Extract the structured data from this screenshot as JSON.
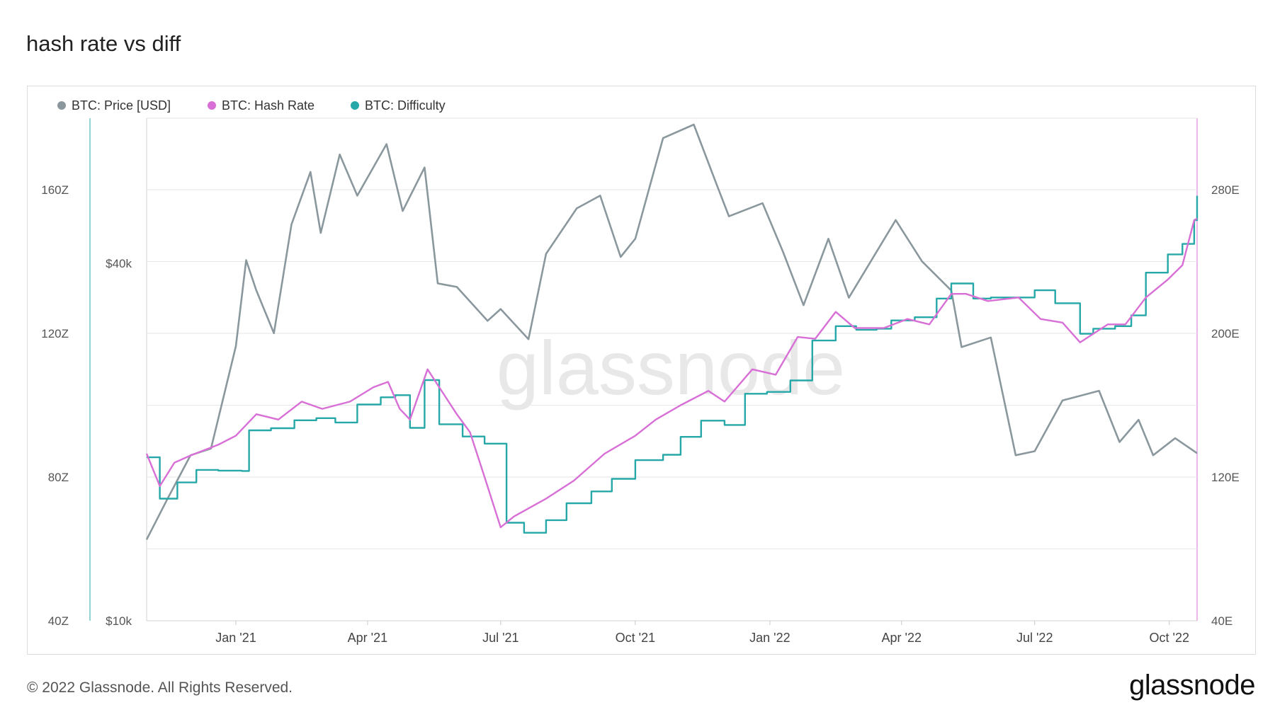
{
  "page": {
    "title": "hash rate vs diff",
    "copyright": "© 2022 Glassnode. All Rights Reserved.",
    "brand": "glassnode",
    "watermark": "glassnode"
  },
  "colors": {
    "price": "#8a989e",
    "hash_rate": "#d86fd6",
    "difficulty": "#26a7a8",
    "grid": "#e6e6e6"
  },
  "chart_data": {
    "type": "line",
    "title": "hash rate vs diff",
    "legend_position": "top-left",
    "grid": true,
    "x_range": [
      "2020-11-01",
      "2022-10-20"
    ],
    "x_ticks": [
      {
        "label": "Jan '21",
        "date": "2021-01-01"
      },
      {
        "label": "Apr '21",
        "date": "2021-04-01"
      },
      {
        "label": "Jul '21",
        "date": "2021-07-01"
      },
      {
        "label": "Oct '21",
        "date": "2021-10-01"
      },
      {
        "label": "Jan '22",
        "date": "2022-01-01"
      },
      {
        "label": "Apr '22",
        "date": "2022-04-01"
      },
      {
        "label": "Jul '22",
        "date": "2022-07-01"
      },
      {
        "label": "Oct '22",
        "date": "2022-10-01"
      }
    ],
    "y_axes": {
      "difficulty": {
        "range": [
          40,
          160
        ],
        "unit": "Z",
        "ticks": [
          {
            "value": 40,
            "label": "40Z"
          },
          {
            "value": 80,
            "label": "80Z"
          },
          {
            "value": 120,
            "label": "120Z"
          },
          {
            "value": 160,
            "label": "160Z"
          }
        ]
      },
      "price": {
        "scale": "log",
        "ticks": [
          {
            "value": 10000,
            "label": "$10k"
          },
          {
            "value": 40000,
            "label": "$40k"
          }
        ]
      },
      "hash_rate": {
        "range": [
          40,
          280
        ],
        "unit": "E",
        "ticks": [
          {
            "value": 40,
            "label": "40E"
          },
          {
            "value": 120,
            "label": "120E"
          },
          {
            "value": 200,
            "label": "200E"
          },
          {
            "value": 280,
            "label": "280E"
          }
        ]
      }
    },
    "series": [
      {
        "name": "BTC: Price [USD]",
        "axis": "price",
        "points": [
          [
            "2020-11-01",
            13700
          ],
          [
            "2020-11-15",
            16000
          ],
          [
            "2020-12-01",
            19000
          ],
          [
            "2020-12-15",
            19500
          ],
          [
            "2021-01-01",
            29000
          ],
          [
            "2021-01-08",
            40500
          ],
          [
            "2021-01-15",
            36000
          ],
          [
            "2021-01-27",
            30500
          ],
          [
            "2021-02-08",
            46500
          ],
          [
            "2021-02-21",
            57000
          ],
          [
            "2021-02-28",
            45000
          ],
          [
            "2021-03-13",
            61000
          ],
          [
            "2021-03-25",
            52000
          ],
          [
            "2021-04-14",
            63500
          ],
          [
            "2021-04-25",
            49000
          ],
          [
            "2021-05-10",
            58000
          ],
          [
            "2021-05-19",
            37000
          ],
          [
            "2021-06-01",
            36500
          ],
          [
            "2021-06-22",
            32000
          ],
          [
            "2021-07-01",
            33500
          ],
          [
            "2021-07-20",
            29800
          ],
          [
            "2021-08-01",
            41500
          ],
          [
            "2021-08-22",
            49500
          ],
          [
            "2021-09-07",
            52000
          ],
          [
            "2021-09-21",
            41000
          ],
          [
            "2021-10-01",
            44000
          ],
          [
            "2021-10-20",
            65000
          ],
          [
            "2021-11-10",
            68500
          ],
          [
            "2021-11-26",
            54000
          ],
          [
            "2021-12-04",
            48000
          ],
          [
            "2021-12-27",
            50500
          ],
          [
            "2022-01-10",
            41800
          ],
          [
            "2022-01-24",
            34000
          ],
          [
            "2022-02-10",
            44000
          ],
          [
            "2022-02-24",
            35000
          ],
          [
            "2022-03-28",
            47300
          ],
          [
            "2022-04-15",
            40300
          ],
          [
            "2022-05-05",
            36000
          ],
          [
            "2022-05-12",
            28900
          ],
          [
            "2022-06-01",
            30000
          ],
          [
            "2022-06-18",
            19000
          ],
          [
            "2022-07-01",
            19300
          ],
          [
            "2022-07-20",
            23500
          ],
          [
            "2022-08-14",
            24400
          ],
          [
            "2022-08-28",
            20000
          ],
          [
            "2022-09-10",
            21800
          ],
          [
            "2022-09-20",
            19000
          ],
          [
            "2022-10-05",
            20300
          ],
          [
            "2022-10-20",
            19150
          ]
        ]
      },
      {
        "name": "BTC: Hash Rate",
        "axis": "hash_rate",
        "points": [
          [
            "2020-11-01",
            133
          ],
          [
            "2020-11-10",
            115
          ],
          [
            "2020-11-20",
            128
          ],
          [
            "2020-12-01",
            132
          ],
          [
            "2020-12-20",
            138
          ],
          [
            "2021-01-01",
            143
          ],
          [
            "2021-01-15",
            155
          ],
          [
            "2021-01-30",
            152
          ],
          [
            "2021-02-15",
            162
          ],
          [
            "2021-03-01",
            158
          ],
          [
            "2021-03-20",
            162
          ],
          [
            "2021-04-05",
            170
          ],
          [
            "2021-04-15",
            173
          ],
          [
            "2021-04-23",
            158
          ],
          [
            "2021-04-30",
            152
          ],
          [
            "2021-05-12",
            180
          ],
          [
            "2021-05-20",
            170
          ],
          [
            "2021-06-01",
            155
          ],
          [
            "2021-06-10",
            145
          ],
          [
            "2021-06-20",
            120
          ],
          [
            "2021-07-01",
            92
          ],
          [
            "2021-07-10",
            98
          ],
          [
            "2021-08-01",
            108
          ],
          [
            "2021-08-20",
            118
          ],
          [
            "2021-09-10",
            133
          ],
          [
            "2021-10-01",
            143
          ],
          [
            "2021-10-15",
            152
          ],
          [
            "2021-11-01",
            160
          ],
          [
            "2021-11-20",
            168
          ],
          [
            "2021-12-01",
            162
          ],
          [
            "2021-12-20",
            180
          ],
          [
            "2022-01-05",
            177
          ],
          [
            "2022-01-20",
            198
          ],
          [
            "2022-02-01",
            197
          ],
          [
            "2022-02-15",
            212
          ],
          [
            "2022-02-28",
            203
          ],
          [
            "2022-03-20",
            203
          ],
          [
            "2022-04-05",
            208
          ],
          [
            "2022-04-20",
            205
          ],
          [
            "2022-05-05",
            222
          ],
          [
            "2022-05-15",
            222
          ],
          [
            "2022-05-30",
            218
          ],
          [
            "2022-06-20",
            220
          ],
          [
            "2022-07-05",
            208
          ],
          [
            "2022-07-20",
            206
          ],
          [
            "2022-08-01",
            195
          ],
          [
            "2022-08-20",
            205
          ],
          [
            "2022-09-01",
            205
          ],
          [
            "2022-09-15",
            220
          ],
          [
            "2022-09-30",
            230
          ],
          [
            "2022-10-10",
            238
          ],
          [
            "2022-10-18",
            263
          ],
          [
            "2022-10-20",
            264
          ]
        ]
      },
      {
        "name": "BTC: Difficulty",
        "axis": "difficulty",
        "step": true,
        "points": [
          [
            "2020-11-01",
            85.5
          ],
          [
            "2020-11-10",
            74.0
          ],
          [
            "2020-11-22",
            78.5
          ],
          [
            "2020-12-05",
            82.0
          ],
          [
            "2020-12-20",
            81.8
          ],
          [
            "2021-01-05",
            81.7
          ],
          [
            "2021-01-10",
            93.0
          ],
          [
            "2021-01-25",
            93.6
          ],
          [
            "2021-02-10",
            95.8
          ],
          [
            "2021-02-25",
            96.4
          ],
          [
            "2021-03-10",
            95.2
          ],
          [
            "2021-03-25",
            100.2
          ],
          [
            "2021-04-10",
            102.2
          ],
          [
            "2021-04-20",
            102.8
          ],
          [
            "2021-04-30",
            93.7
          ],
          [
            "2021-05-10",
            107.0
          ],
          [
            "2021-05-20",
            94.7
          ],
          [
            "2021-06-05",
            91.3
          ],
          [
            "2021-06-20",
            89.3
          ],
          [
            "2021-07-05",
            67.3
          ],
          [
            "2021-07-17",
            64.5
          ],
          [
            "2021-08-01",
            68.0
          ],
          [
            "2021-08-15",
            72.7
          ],
          [
            "2021-09-01",
            76.0
          ],
          [
            "2021-09-15",
            79.5
          ],
          [
            "2021-10-01",
            84.7
          ],
          [
            "2021-10-20",
            86.2
          ],
          [
            "2021-11-01",
            91.2
          ],
          [
            "2021-11-15",
            95.7
          ],
          [
            "2021-12-01",
            94.5
          ],
          [
            "2021-12-15",
            103.2
          ],
          [
            "2021-12-30",
            103.7
          ],
          [
            "2022-01-15",
            106.9
          ],
          [
            "2022-01-30",
            118.0
          ],
          [
            "2022-02-15",
            122.0
          ],
          [
            "2022-03-01",
            121.0
          ],
          [
            "2022-03-15",
            121.3
          ],
          [
            "2022-03-25",
            123.6
          ],
          [
            "2022-04-10",
            124.5
          ],
          [
            "2022-04-25",
            129.7
          ],
          [
            "2022-05-05",
            133.9
          ],
          [
            "2022-05-20",
            129.7
          ],
          [
            "2022-06-01",
            130.0
          ],
          [
            "2022-06-20",
            130.0
          ],
          [
            "2022-07-01",
            132.0
          ],
          [
            "2022-07-15",
            128.4
          ],
          [
            "2022-08-01",
            119.9
          ],
          [
            "2022-08-10",
            121.3
          ],
          [
            "2022-08-25",
            122.0
          ],
          [
            "2022-09-05",
            125.0
          ],
          [
            "2022-09-15",
            136.9
          ],
          [
            "2022-09-30",
            142.0
          ],
          [
            "2022-10-10",
            144.9
          ],
          [
            "2022-10-18",
            151.5
          ],
          [
            "2022-10-20",
            158.3
          ]
        ]
      }
    ]
  }
}
